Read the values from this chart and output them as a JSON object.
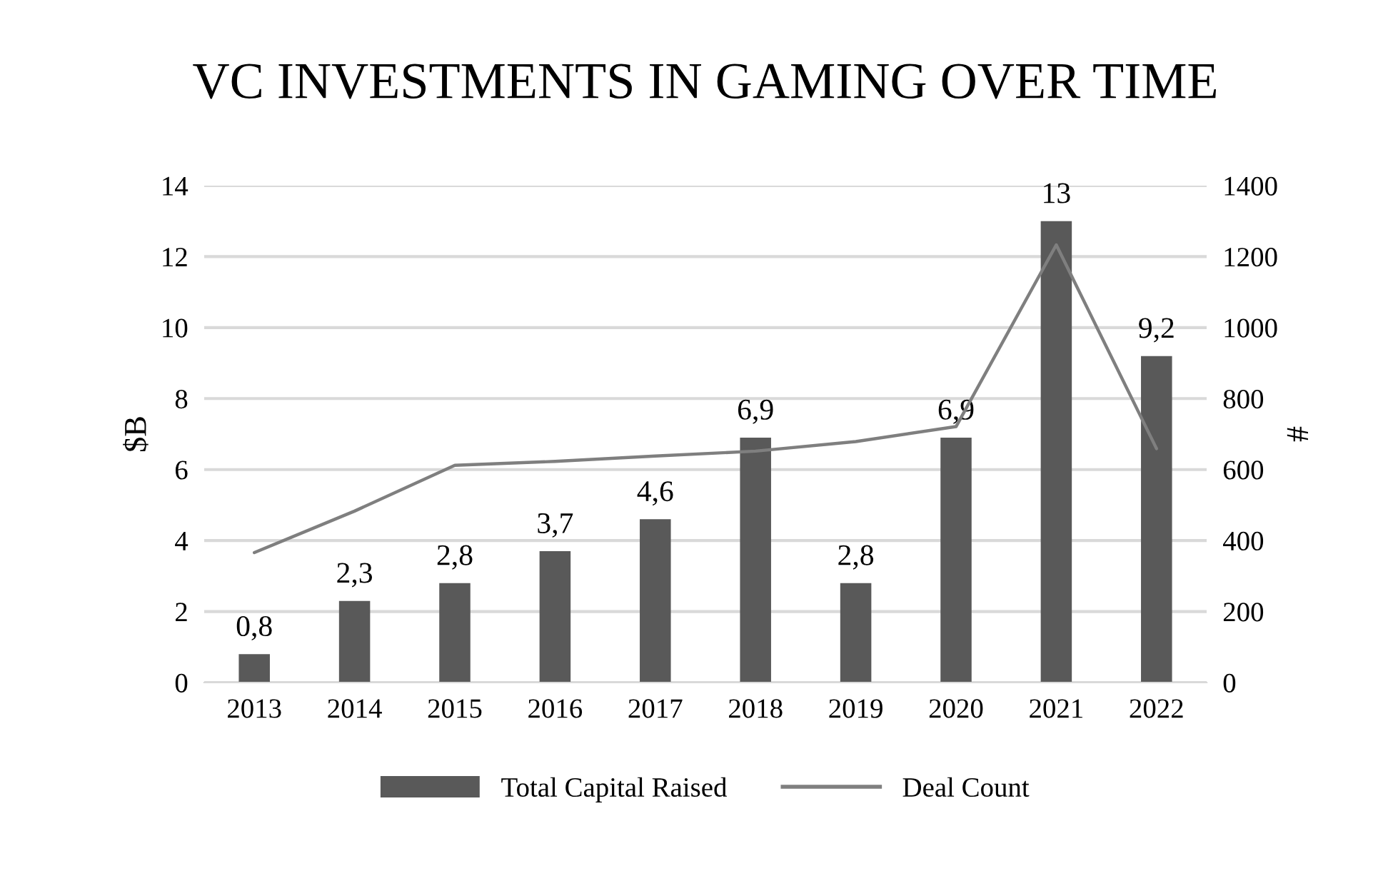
{
  "chart_data": {
    "type": "bar",
    "title": "VC INVESTMENTS IN GAMING OVER TIME",
    "ylabel": "$B",
    "y2label": "#",
    "categories": [
      "2013",
      "2014",
      "2015",
      "2016",
      "2017",
      "2018",
      "2019",
      "2020",
      "2021",
      "2022"
    ],
    "series": [
      {
        "name": "Total Capital Raised",
        "color": "#595959",
        "values": [
          0.8,
          2.3,
          2.8,
          3.7,
          4.6,
          6.9,
          2.8,
          6.9,
          13,
          9.2
        ],
        "value_labels": [
          "0,8",
          "2,3",
          "2,8",
          "3,7",
          "4,6",
          "6,9",
          "2,8",
          "6,9",
          "13",
          "9,2"
        ]
      },
      {
        "name": "Deal Count",
        "type": "line",
        "axis": "y2",
        "color": "#7f7f7f",
        "values": [
          366,
          483,
          612,
          623,
          638,
          652,
          679,
          721,
          1233,
          659
        ]
      }
    ],
    "ylim": [
      0,
      14
    ],
    "yticks": [
      0,
      2,
      4,
      6,
      8,
      10,
      12,
      14
    ],
    "y2lim": [
      0,
      1400
    ],
    "y2ticks": [
      0,
      200,
      400,
      600,
      800,
      1000,
      1200,
      1400
    ],
    "grid": "y",
    "legend": "bottom",
    "marker": "none",
    "line_style": "solid"
  }
}
